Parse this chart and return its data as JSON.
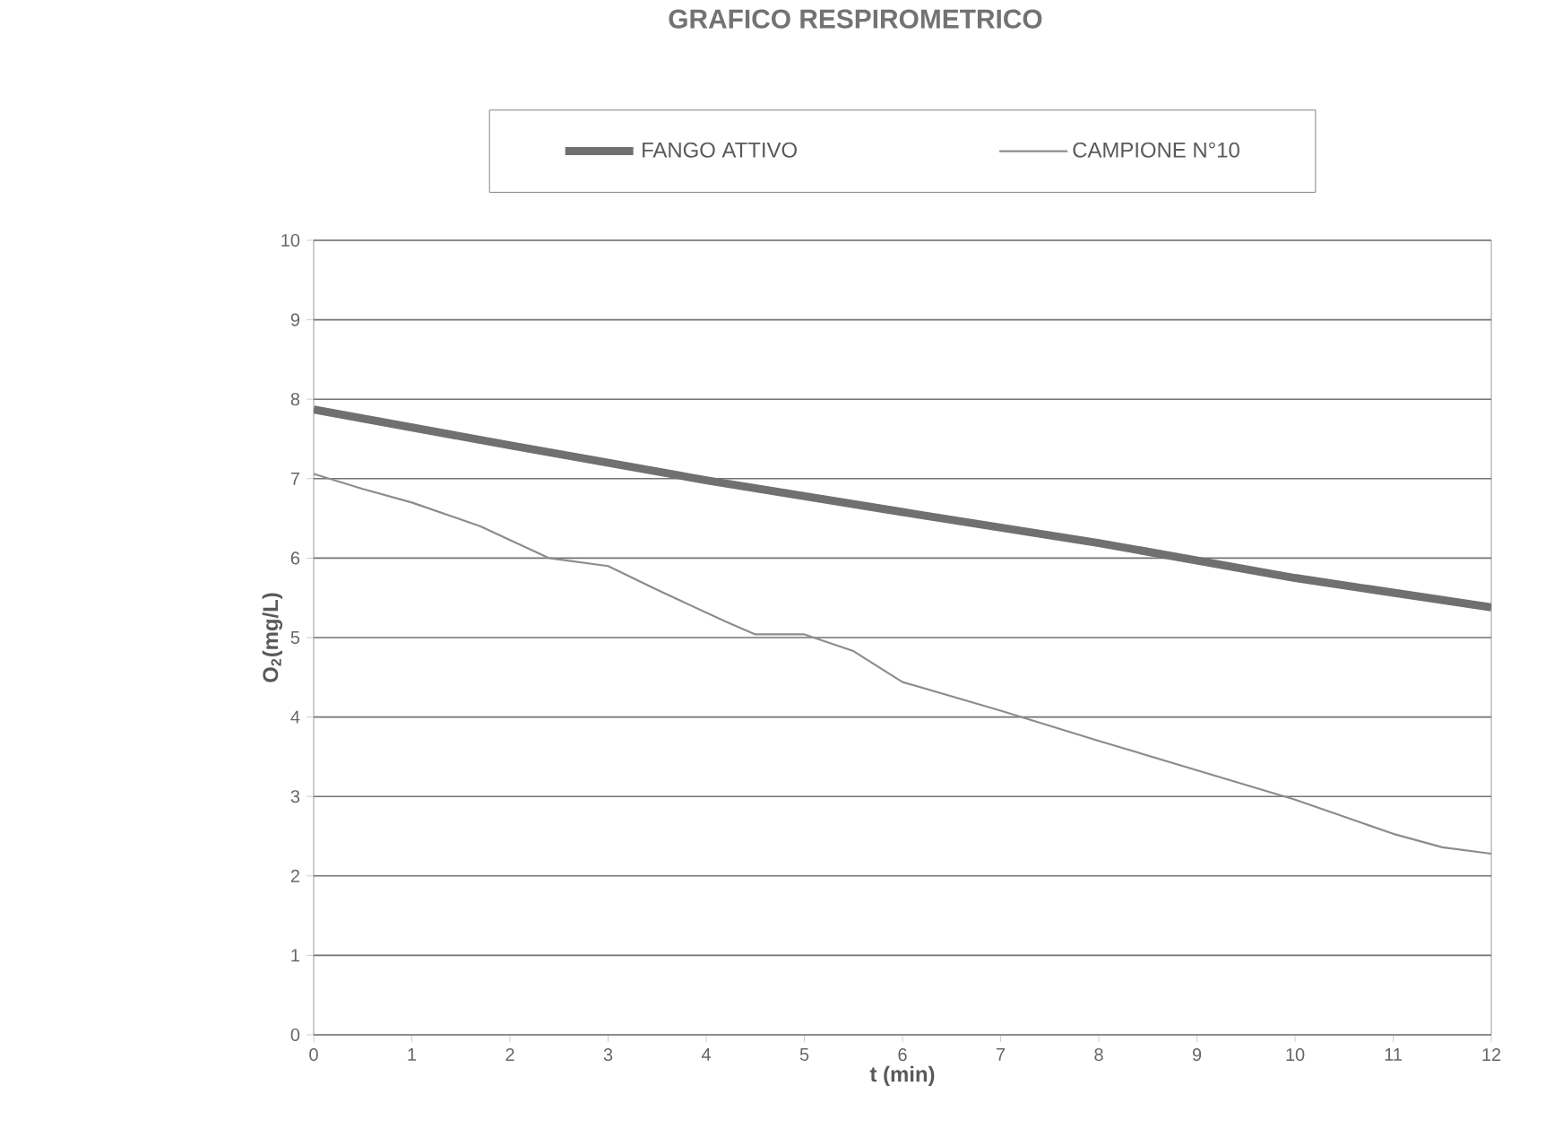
{
  "chart_data": {
    "type": "line",
    "title": "GRAFICO RESPIROMETRICO",
    "xlabel": "t (min)",
    "ylabel": "O$_{2}$(mg/L)",
    "xlim": [
      0,
      12
    ],
    "ylim": [
      0,
      10
    ],
    "xticks": [
      0,
      1,
      2,
      3,
      4,
      5,
      6,
      7,
      8,
      9,
      10,
      11,
      12
    ],
    "yticks": [
      0,
      1,
      2,
      3,
      4,
      5,
      6,
      7,
      8,
      9,
      10
    ],
    "grid": "y",
    "legend": "top",
    "marker": "none",
    "line_style": "solid",
    "series": [
      {
        "name": "FANGO ATTIVO",
        "color": "#707070",
        "x": [
          0,
          2,
          4,
          6,
          8,
          10,
          12
        ],
        "values": [
          7.87,
          7.42,
          6.98,
          6.58,
          6.19,
          5.75,
          5.38
        ]
      },
      {
        "name": "CAMPIONE N°10",
        "color": "#8c8c8c",
        "x": [
          0,
          0.5,
          1,
          1.7,
          2.4,
          3,
          3.5,
          4.2,
          4.5,
          5,
          5.5,
          6,
          7,
          8,
          9,
          10,
          11,
          11.5,
          12
        ],
        "values": [
          7.06,
          6.87,
          6.7,
          6.4,
          6.0,
          5.9,
          5.6,
          5.2,
          5.04,
          5.04,
          4.83,
          4.44,
          4.08,
          3.7,
          3.33,
          2.96,
          2.53,
          2.36,
          2.28
        ]
      }
    ]
  }
}
